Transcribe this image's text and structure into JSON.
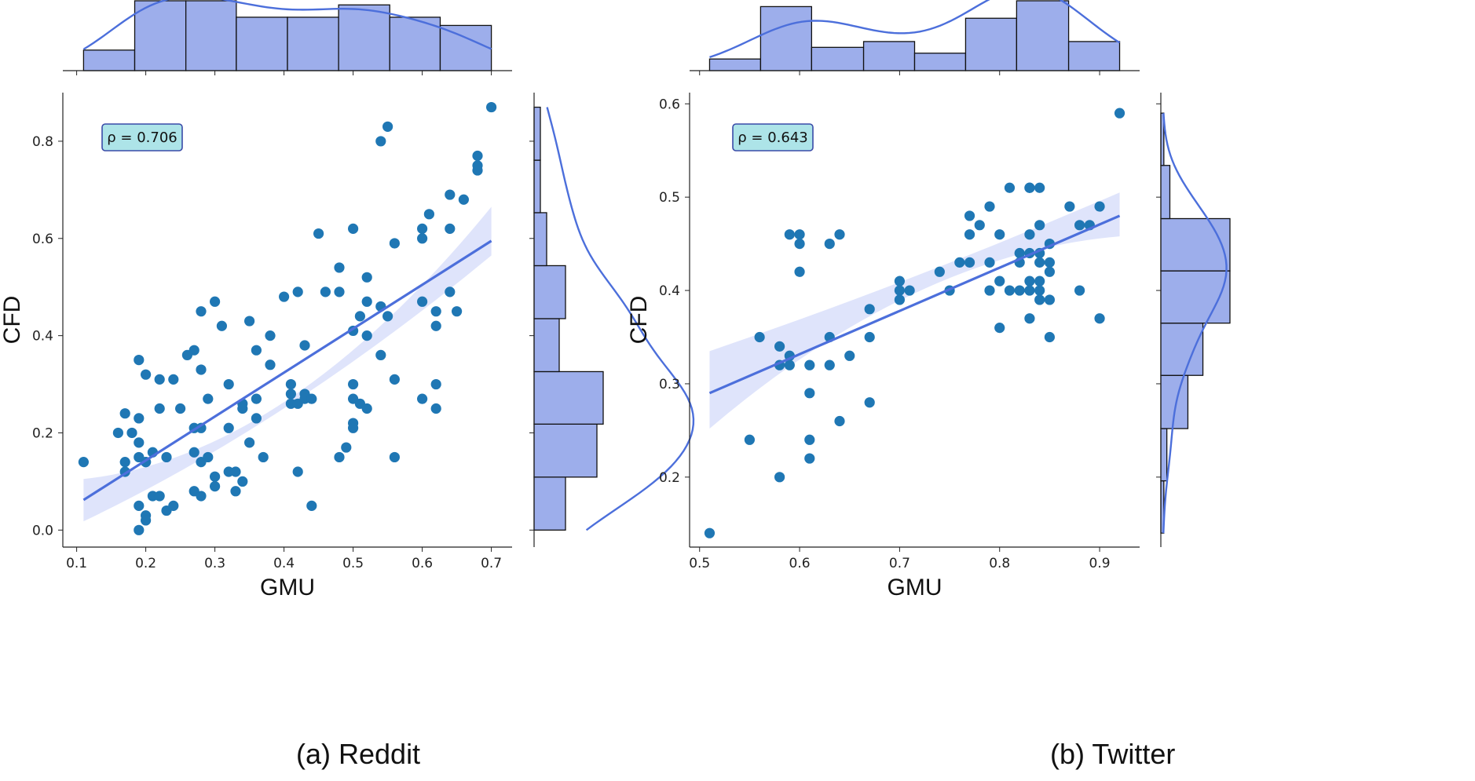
{
  "chart_data": [
    {
      "type": "scatter",
      "panel_label": "(a) Reddit",
      "xlabel": "GMU",
      "ylabel": "CFD",
      "xlim": [
        0.08,
        0.73
      ],
      "ylim": [
        -0.035,
        0.9
      ],
      "xticks": [
        "0.1",
        "0.2",
        "0.3",
        "0.4",
        "0.5",
        "0.6",
        "0.7"
      ],
      "yticks": [
        "0.0",
        "0.2",
        "0.4",
        "0.6",
        "0.8"
      ],
      "annotation": "ρ = 0.706",
      "grid": false,
      "legend": "none",
      "x": [
        0.11,
        0.16,
        0.17,
        0.17,
        0.17,
        0.18,
        0.19,
        0.19,
        0.19,
        0.19,
        0.19,
        0.19,
        0.2,
        0.2,
        0.2,
        0.2,
        0.2,
        0.21,
        0.21,
        0.22,
        0.22,
        0.22,
        0.23,
        0.23,
        0.24,
        0.24,
        0.25,
        0.26,
        0.27,
        0.27,
        0.27,
        0.27,
        0.28,
        0.28,
        0.28,
        0.28,
        0.28,
        0.29,
        0.29,
        0.3,
        0.3,
        0.3,
        0.31,
        0.32,
        0.32,
        0.32,
        0.33,
        0.33,
        0.34,
        0.34,
        0.34,
        0.35,
        0.35,
        0.36,
        0.36,
        0.36,
        0.37,
        0.38,
        0.38,
        0.4,
        0.41,
        0.41,
        0.41,
        0.42,
        0.42,
        0.42,
        0.43,
        0.43,
        0.43,
        0.44,
        0.44,
        0.45,
        0.46,
        0.48,
        0.48,
        0.48,
        0.49,
        0.5,
        0.5,
        0.5,
        0.5,
        0.5,
        0.5,
        0.51,
        0.51,
        0.52,
        0.52,
        0.52,
        0.52,
        0.54,
        0.54,
        0.55,
        0.56,
        0.56,
        0.56,
        0.6,
        0.6,
        0.6,
        0.6,
        0.61,
        0.62,
        0.62,
        0.62,
        0.62,
        0.64,
        0.64,
        0.64,
        0.65,
        0.66,
        0.68,
        0.68,
        0.68,
        0.7,
        0.54,
        0.55
      ],
      "y": [
        0.14,
        0.2,
        0.24,
        0.14,
        0.12,
        0.2,
        0.35,
        0.23,
        0.18,
        0.15,
        0.05,
        0.0,
        0.32,
        0.14,
        0.14,
        0.03,
        0.02,
        0.16,
        0.07,
        0.31,
        0.25,
        0.07,
        0.15,
        0.04,
        0.31,
        0.05,
        0.25,
        0.36,
        0.37,
        0.21,
        0.16,
        0.08,
        0.45,
        0.33,
        0.21,
        0.14,
        0.07,
        0.27,
        0.15,
        0.47,
        0.11,
        0.09,
        0.42,
        0.3,
        0.21,
        0.12,
        0.12,
        0.08,
        0.26,
        0.25,
        0.1,
        0.43,
        0.18,
        0.37,
        0.27,
        0.23,
        0.15,
        0.4,
        0.34,
        0.48,
        0.3,
        0.28,
        0.26,
        0.49,
        0.26,
        0.12,
        0.38,
        0.28,
        0.27,
        0.27,
        0.05,
        0.61,
        0.49,
        0.54,
        0.49,
        0.15,
        0.17,
        0.62,
        0.41,
        0.3,
        0.27,
        0.22,
        0.21,
        0.44,
        0.26,
        0.52,
        0.47,
        0.4,
        0.25,
        0.46,
        0.36,
        0.44,
        0.59,
        0.31,
        0.15,
        0.62,
        0.6,
        0.47,
        0.27,
        0.65,
        0.45,
        0.42,
        0.3,
        0.25,
        0.69,
        0.62,
        0.49,
        0.45,
        0.68,
        0.77,
        0.75,
        0.74,
        0.87,
        0.8,
        0.83
      ],
      "regression": {
        "x": [
          0.11,
          0.7
        ],
        "y": [
          0.062,
          0.595
        ],
        "ci_lower": [
          0.018,
          0.565
        ],
        "ci_upper": [
          0.105,
          0.665
        ],
        "ci_mid_lower": [
          0.255,
          0.405
        ],
        "ci_mid_upper": [
          0.268,
          0.418
        ]
      },
      "top_histogram": {
        "bin_edges": [
          0.11,
          0.184,
          0.258,
          0.331,
          0.405,
          0.479,
          0.553,
          0.626,
          0.7
        ],
        "counts": [
          5,
          17,
          17,
          13,
          13,
          16,
          13,
          11
        ]
      },
      "right_histogram": {
        "bin_edges": [
          0.0,
          0.109,
          0.218,
          0.326,
          0.435,
          0.544,
          0.653,
          0.761,
          0.87
        ],
        "counts": [
          5,
          10,
          11,
          4,
          5,
          2,
          1,
          1
        ]
      }
    },
    {
      "type": "scatter",
      "panel_label": "(b) Twitter",
      "xlabel": "GMU",
      "ylabel": "CFD",
      "xlim": [
        0.49,
        0.94
      ],
      "ylim": [
        0.125,
        0.612
      ],
      "xticks": [
        "0.5",
        "0.6",
        "0.7",
        "0.8",
        "0.9"
      ],
      "yticks": [
        "0.2",
        "0.3",
        "0.4",
        "0.5",
        "0.6"
      ],
      "annotation": "ρ = 0.643",
      "grid": false,
      "legend": "none",
      "x": [
        0.51,
        0.55,
        0.56,
        0.58,
        0.58,
        0.58,
        0.59,
        0.59,
        0.59,
        0.6,
        0.6,
        0.6,
        0.61,
        0.61,
        0.61,
        0.61,
        0.63,
        0.63,
        0.63,
        0.64,
        0.64,
        0.65,
        0.67,
        0.67,
        0.67,
        0.7,
        0.7,
        0.7,
        0.71,
        0.74,
        0.75,
        0.76,
        0.77,
        0.77,
        0.77,
        0.78,
        0.79,
        0.79,
        0.79,
        0.8,
        0.8,
        0.8,
        0.81,
        0.81,
        0.82,
        0.82,
        0.82,
        0.83,
        0.83,
        0.83,
        0.83,
        0.83,
        0.83,
        0.83,
        0.84,
        0.84,
        0.84,
        0.84,
        0.84,
        0.84,
        0.84,
        0.85,
        0.85,
        0.85,
        0.85,
        0.85,
        0.87,
        0.88,
        0.88,
        0.89,
        0.9,
        0.9,
        0.92
      ],
      "y": [
        0.14,
        0.24,
        0.35,
        0.2,
        0.32,
        0.34,
        0.33,
        0.32,
        0.46,
        0.46,
        0.45,
        0.42,
        0.32,
        0.29,
        0.24,
        0.22,
        0.45,
        0.35,
        0.32,
        0.46,
        0.26,
        0.33,
        0.38,
        0.35,
        0.28,
        0.41,
        0.4,
        0.39,
        0.4,
        0.42,
        0.4,
        0.43,
        0.48,
        0.46,
        0.43,
        0.47,
        0.49,
        0.43,
        0.4,
        0.46,
        0.41,
        0.36,
        0.51,
        0.4,
        0.44,
        0.43,
        0.4,
        0.51,
        0.46,
        0.44,
        0.41,
        0.4,
        0.37,
        0.51,
        0.47,
        0.44,
        0.43,
        0.41,
        0.4,
        0.39,
        0.51,
        0.45,
        0.43,
        0.42,
        0.39,
        0.35,
        0.49,
        0.47,
        0.4,
        0.47,
        0.49,
        0.37,
        0.59
      ],
      "regression": {
        "x": [
          0.51,
          0.92
        ],
        "y": [
          0.29,
          0.48
        ],
        "ci_lower": [
          0.252,
          0.458
        ],
        "ci_upper": [
          0.335,
          0.505
        ],
        "ci_mid_lower": [
          0.397,
          0.397
        ],
        "ci_mid_upper": [
          0.415,
          0.415
        ]
      },
      "top_histogram": {
        "bin_edges": [
          0.51,
          0.561,
          0.612,
          0.664,
          0.715,
          0.766,
          0.817,
          0.869,
          0.92
        ],
        "counts": [
          2,
          11,
          4,
          5,
          3,
          9,
          12,
          5
        ]
      },
      "right_histogram": {
        "bin_edges": [
          0.14,
          0.196,
          0.252,
          0.309,
          0.365,
          0.421,
          0.477,
          0.534,
          0.59
        ],
        "counts": [
          1,
          2,
          9,
          14,
          23,
          23,
          3,
          1
        ]
      }
    }
  ],
  "captions": {
    "a": "(a) Reddit",
    "b": "(b) Twitter"
  },
  "colors": {
    "points": "#1f77b4",
    "line": "#4c6fdb",
    "band": "#dde3fb",
    "hist_fill": "#9daeeb",
    "hist_edge": "#111111",
    "annot_fill": "#ade4e8",
    "annot_edge": "#3a4ba8"
  }
}
